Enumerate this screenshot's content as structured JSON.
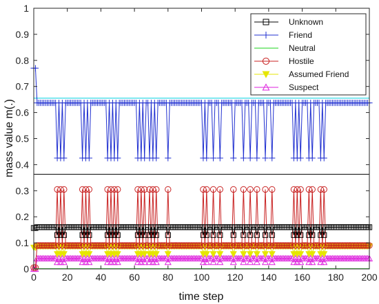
{
  "chart_data": {
    "type": "line",
    "xlabel": "time step",
    "ylabel": "mass value m(.)",
    "xlim": [
      0,
      200
    ],
    "ylim": [
      0,
      1
    ],
    "xticks": [
      0,
      20,
      40,
      60,
      80,
      100,
      120,
      140,
      160,
      180,
      200
    ],
    "yticks": [
      0,
      0.1,
      0.2,
      0.3,
      0.4,
      0.5,
      0.6,
      0.7,
      0.8,
      0.9,
      1
    ],
    "xtick_labels": [
      "0",
      "20",
      "40",
      "60",
      "80",
      "100",
      "120",
      "140",
      "160",
      "180",
      "200"
    ],
    "ytick_labels": [
      "0",
      "0.1",
      "0.2",
      "0.3",
      "0.4",
      "0.5",
      "0.6",
      "0.7",
      "0.8",
      "0.9",
      "1"
    ],
    "grid": false,
    "legend_position": "top-right",
    "reference_lines": [
      {
        "y": 0.363,
        "color": "#000000"
      },
      {
        "y": 0.655,
        "color": "#00d0e0"
      }
    ],
    "x": [
      0,
      200
    ],
    "spikes": [
      14,
      16,
      18,
      29,
      31,
      33,
      44,
      46,
      48,
      50,
      62,
      64,
      66,
      69,
      71,
      73,
      80,
      101,
      103,
      107,
      111,
      119,
      125,
      129,
      133,
      138,
      142,
      155,
      157,
      159,
      164,
      166,
      171,
      173
    ],
    "series": [
      {
        "name": "Unknown",
        "color": "#000000",
        "marker": "square",
        "baseline": 0.16,
        "spike": 0.13,
        "initial": 0.157
      },
      {
        "name": "Friend",
        "color": "#1f2fd0",
        "marker": "plus",
        "baseline": 0.637,
        "spike": 0.425,
        "initial": 0.77
      },
      {
        "name": "Neutral",
        "color": "#19d319",
        "marker": "none",
        "baseline": 0.001,
        "spike": 0.001,
        "initial": 0.001
      },
      {
        "name": "Hostile",
        "color": "#c82020",
        "marker": "circle",
        "baseline": 0.09,
        "spike": 0.305,
        "initial": 0.005
      },
      {
        "name": "Assumed Friend",
        "color": "#e6e600",
        "marker": "triangle-down",
        "baseline": 0.087,
        "spike": 0.057,
        "initial": 0.082
      },
      {
        "name": "Suspect",
        "color": "#dd1fdd",
        "marker": "triangle-up",
        "baseline": 0.04,
        "spike": 0.026,
        "initial": 0.0
      }
    ]
  }
}
